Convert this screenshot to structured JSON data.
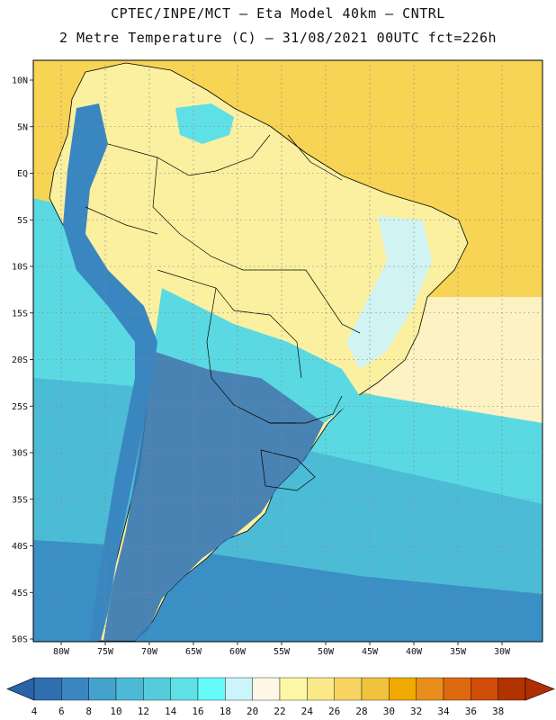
{
  "title_line1": "CPTEC/INPE/MCT  –  Eta Model 40km  –  CNTRL",
  "title_line2": "2 Metre Temperature (C) – 31/08/2021 00UTC fct=226h",
  "lat_labels": [
    "10N",
    "5N",
    "EQ",
    "5S",
    "10S",
    "15S",
    "20S",
    "25S",
    "30S",
    "35S",
    "40S",
    "45S",
    "50S"
  ],
  "lon_labels": [
    "80W",
    "75W",
    "70W",
    "65W",
    "60W",
    "55W",
    "50W",
    "45W",
    "40W",
    "35W",
    "30W"
  ],
  "colorbar": {
    "values": [
      "4",
      "6",
      "8",
      "10",
      "12",
      "14",
      "16",
      "18",
      "20",
      "22",
      "24",
      "26",
      "28",
      "30",
      "32",
      "34",
      "36",
      "38"
    ],
    "colors": [
      "#2f6fb0",
      "#3a86c0",
      "#44a2cc",
      "#4cbad6",
      "#55ccdc",
      "#5fe0e6",
      "#66fafa",
      "#ccf4fb",
      "#fff7e6",
      "#fdf7a8",
      "#fbe888",
      "#f8d562",
      "#f1c23e",
      "#f0aa00",
      "#e98e1c",
      "#de6a10",
      "#cf4d08",
      "#b23200"
    ],
    "end_low_color": "#2a63a8",
    "end_high_color": "#b02e00"
  },
  "palette": {
    "ocean_warm": "#f7d454",
    "land_warm": "#fbf0a0",
    "ocean_mid": "#5bd9e2",
    "ocean_cool": "#4cbcd6",
    "ocean_cold": "#3a90c4",
    "land_cold": "#3577b5",
    "border": "#000000"
  }
}
